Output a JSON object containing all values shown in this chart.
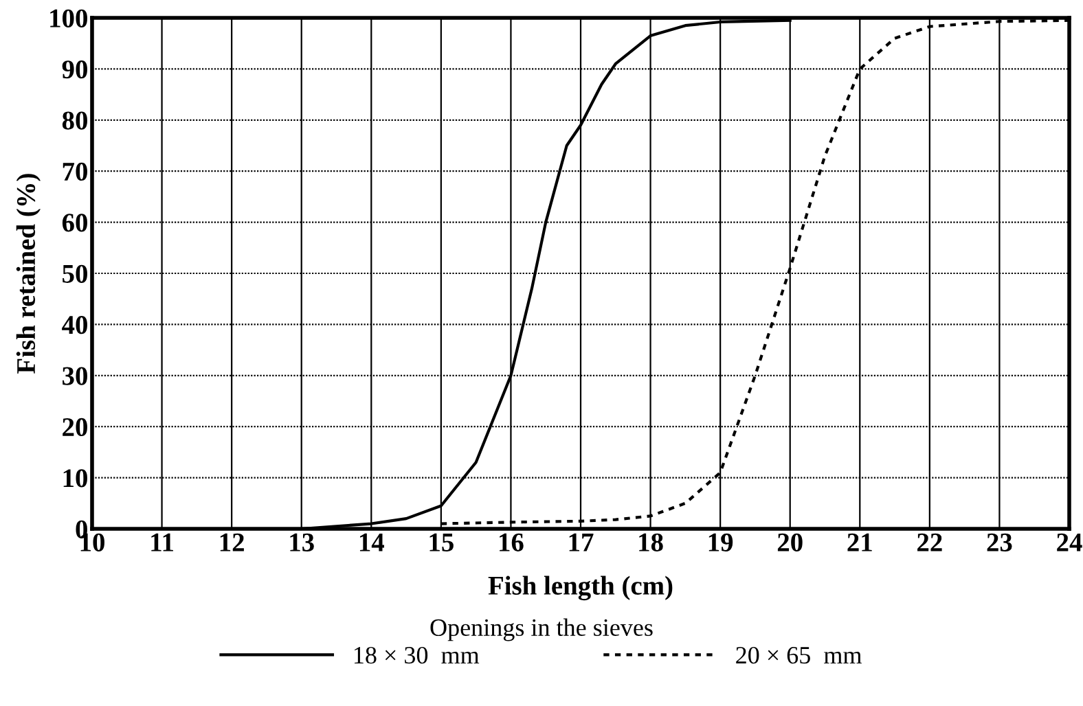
{
  "chart_data": {
    "type": "line",
    "xlabel": "Fish length (cm)",
    "ylabel": "Fish retained (%)",
    "legend_title": "Openings in the sieves",
    "series": [
      {
        "name": "18 × 30  mm",
        "color": "#000000",
        "line_style": "solid",
        "x": [
          13,
          13.5,
          14,
          14.5,
          15,
          15.5,
          16,
          16.3,
          16.5,
          16.8,
          17,
          17.3,
          17.5,
          18,
          18.5,
          19,
          20
        ],
        "values": [
          0,
          0.5,
          1,
          2,
          4.5,
          13,
          30,
          47,
          60,
          75,
          79,
          87,
          91,
          96.5,
          98.5,
          99.2,
          99.5
        ]
      },
      {
        "name": "20 × 65  mm",
        "color": "#000000",
        "line_style": "dotted",
        "x": [
          15,
          16,
          17,
          17.5,
          18,
          18.5,
          19,
          19.5,
          20,
          20.5,
          21,
          21.5,
          22,
          23,
          24
        ],
        "values": [
          1,
          1.3,
          1.5,
          1.8,
          2.5,
          5,
          11,
          30,
          51,
          73,
          90,
          96,
          98.3,
          99.3,
          99.5
        ]
      }
    ],
    "xlim": [
      10,
      24
    ],
    "xticks": [
      10,
      11,
      12,
      13,
      14,
      15,
      16,
      17,
      18,
      19,
      20,
      21,
      22,
      23,
      24
    ],
    "ylim": [
      0,
      100
    ],
    "yticks": [
      0,
      10,
      20,
      30,
      40,
      50,
      60,
      70,
      80,
      90,
      100
    ],
    "grid": true,
    "legend": "bottom",
    "marker": "none"
  }
}
